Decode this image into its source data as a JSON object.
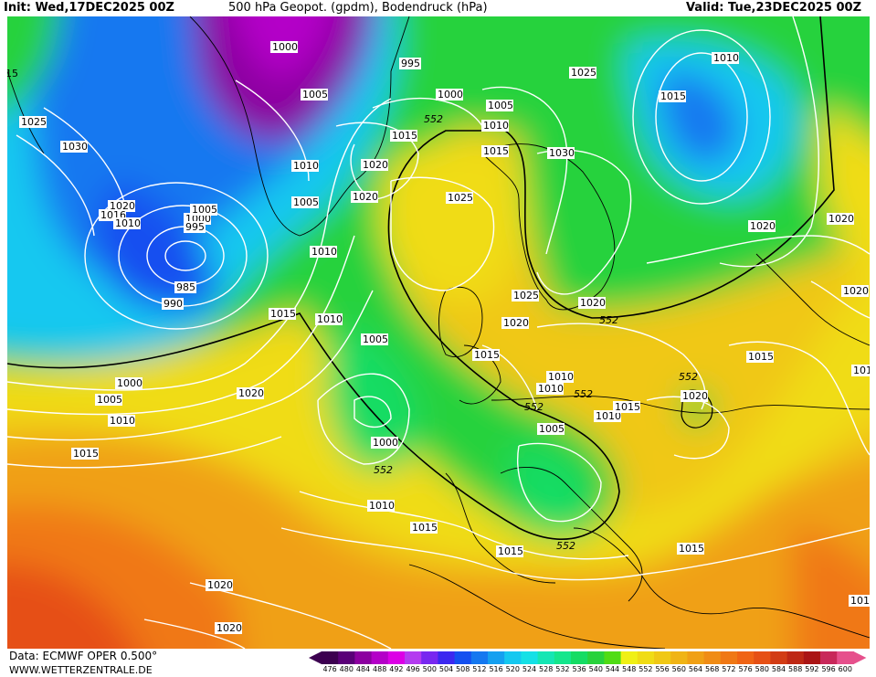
{
  "header": {
    "init": "Init: Wed,17DEC2025 00Z",
    "title": "500 hPa Geopot. (gpdm), Bodendruck (hPa)",
    "valid": "Valid: Tue,23DEC2025 00Z"
  },
  "footer": {
    "source": "Data: ECMWF OPER 0.500°",
    "site": "WWW.WETTERZENTRALE.DE"
  },
  "legend": {
    "unit": "gpdm",
    "ticks": [
      "476",
      "480",
      "484",
      "488",
      "492",
      "496",
      "500",
      "504",
      "508",
      "512",
      "516",
      "520",
      "524",
      "528",
      "532",
      "536",
      "540",
      "544",
      "548",
      "552",
      "556",
      "560",
      "564",
      "568",
      "572",
      "576",
      "580",
      "584",
      "588",
      "592",
      "596",
      "600"
    ],
    "colors": [
      "#3c0050",
      "#5a0078",
      "#8c00a0",
      "#b400c8",
      "#dc00e6",
      "#b43cf0",
      "#7828f0",
      "#3c28f0",
      "#1450f0",
      "#1478f0",
      "#14a0f0",
      "#14c8f0",
      "#14e0e6",
      "#14e6b4",
      "#14e68c",
      "#14dc64",
      "#28d23c",
      "#50dc14",
      "#f0f014",
      "#f0dc14",
      "#f0c814",
      "#f0b414",
      "#f0a014",
      "#f08c14",
      "#f07814",
      "#f06414",
      "#e65014",
      "#d23c14",
      "#be2814",
      "#aa1414",
      "#c8285a",
      "#e6508c"
    ]
  },
  "isobars": [
    "1000",
    "1005",
    "995",
    "1000",
    "1005",
    "1010",
    "1025",
    "1010",
    "1015",
    "1025",
    "1030",
    "1010",
    "1015",
    "1020",
    "1020",
    "1005",
    "1030",
    "1025",
    "1015",
    "1020",
    "1016",
    "1010",
    "1000",
    "1005",
    "995",
    "985",
    "990",
    "1010",
    "1005",
    "1010",
    "1015",
    "1020",
    "1020",
    "1025",
    "1020",
    "1015",
    "1020",
    "1015",
    "1010",
    "1010",
    "1015",
    "1020",
    "1000",
    "1005",
    "1010",
    "1015",
    "1020",
    "1005",
    "1010",
    "1000",
    "1010",
    "1015",
    "1015",
    "1015",
    "1020",
    "1020",
    "1015",
    "1010",
    "1020",
    "1020",
    "1015",
    "1010",
    "1015",
    "1010"
  ],
  "geopot_labels": [
    "552",
    "552",
    "552",
    "552",
    "552",
    "552",
    "552",
    "552"
  ]
}
